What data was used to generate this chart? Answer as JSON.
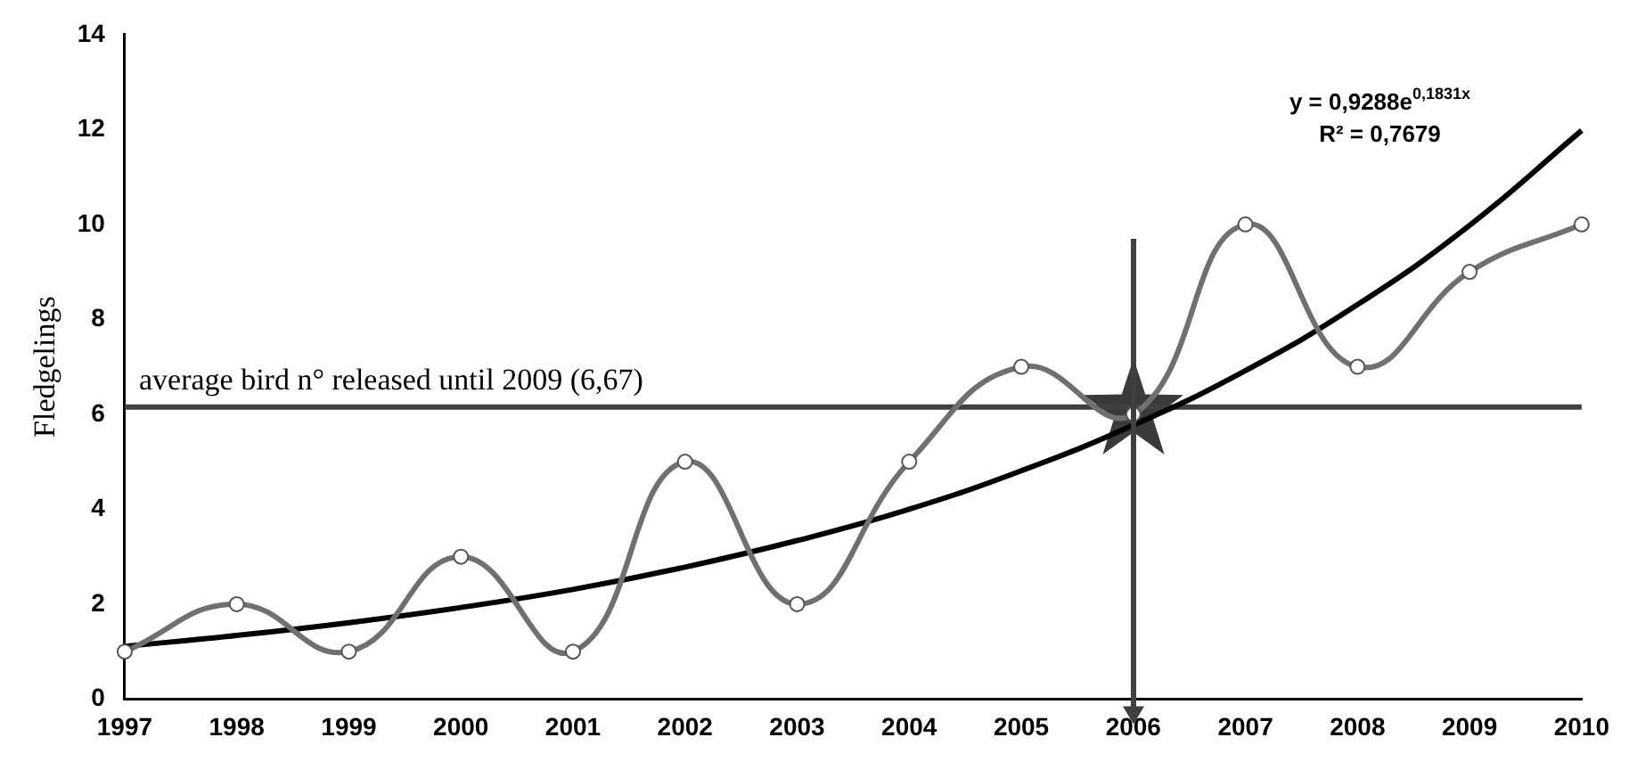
{
  "chart_data": {
    "type": "line",
    "ylabel": "Fledgelings",
    "categories": [
      "1997",
      "1998",
      "1999",
      "2000",
      "2001",
      "2002",
      "2003",
      "2004",
      "2005",
      "2006",
      "2007",
      "2008",
      "2009",
      "2010"
    ],
    "series": [
      {
        "color": "#707070",
        "values": [
          1,
          2,
          1,
          3,
          1,
          5,
          2,
          5,
          7,
          6,
          10,
          7,
          9,
          10
        ],
        "marker": "circle"
      },
      {
        "type": "line",
        "color": "#000000",
        "values": [
          1.11,
          1.34,
          1.61,
          1.93,
          2.31,
          2.78,
          3.34,
          4.0,
          4.81,
          5.77,
          6.92,
          8.31,
          9.98,
          11.98
        ],
        "marker": "none"
      }
    ],
    "ylim": [
      0,
      14
    ],
    "yticks": [
      0,
      2,
      4,
      6,
      8,
      10,
      12,
      14
    ],
    "ref_lines": [
      {
        "axis": "y",
        "value": 6.15,
        "label": "average bird n° released until 2009 (6,67)",
        "color": "#404040"
      }
    ],
    "annotations": [
      "y = 0,9288e$^{0,1831x}$",
      "R² = 0,7679"
    ]
  }
}
